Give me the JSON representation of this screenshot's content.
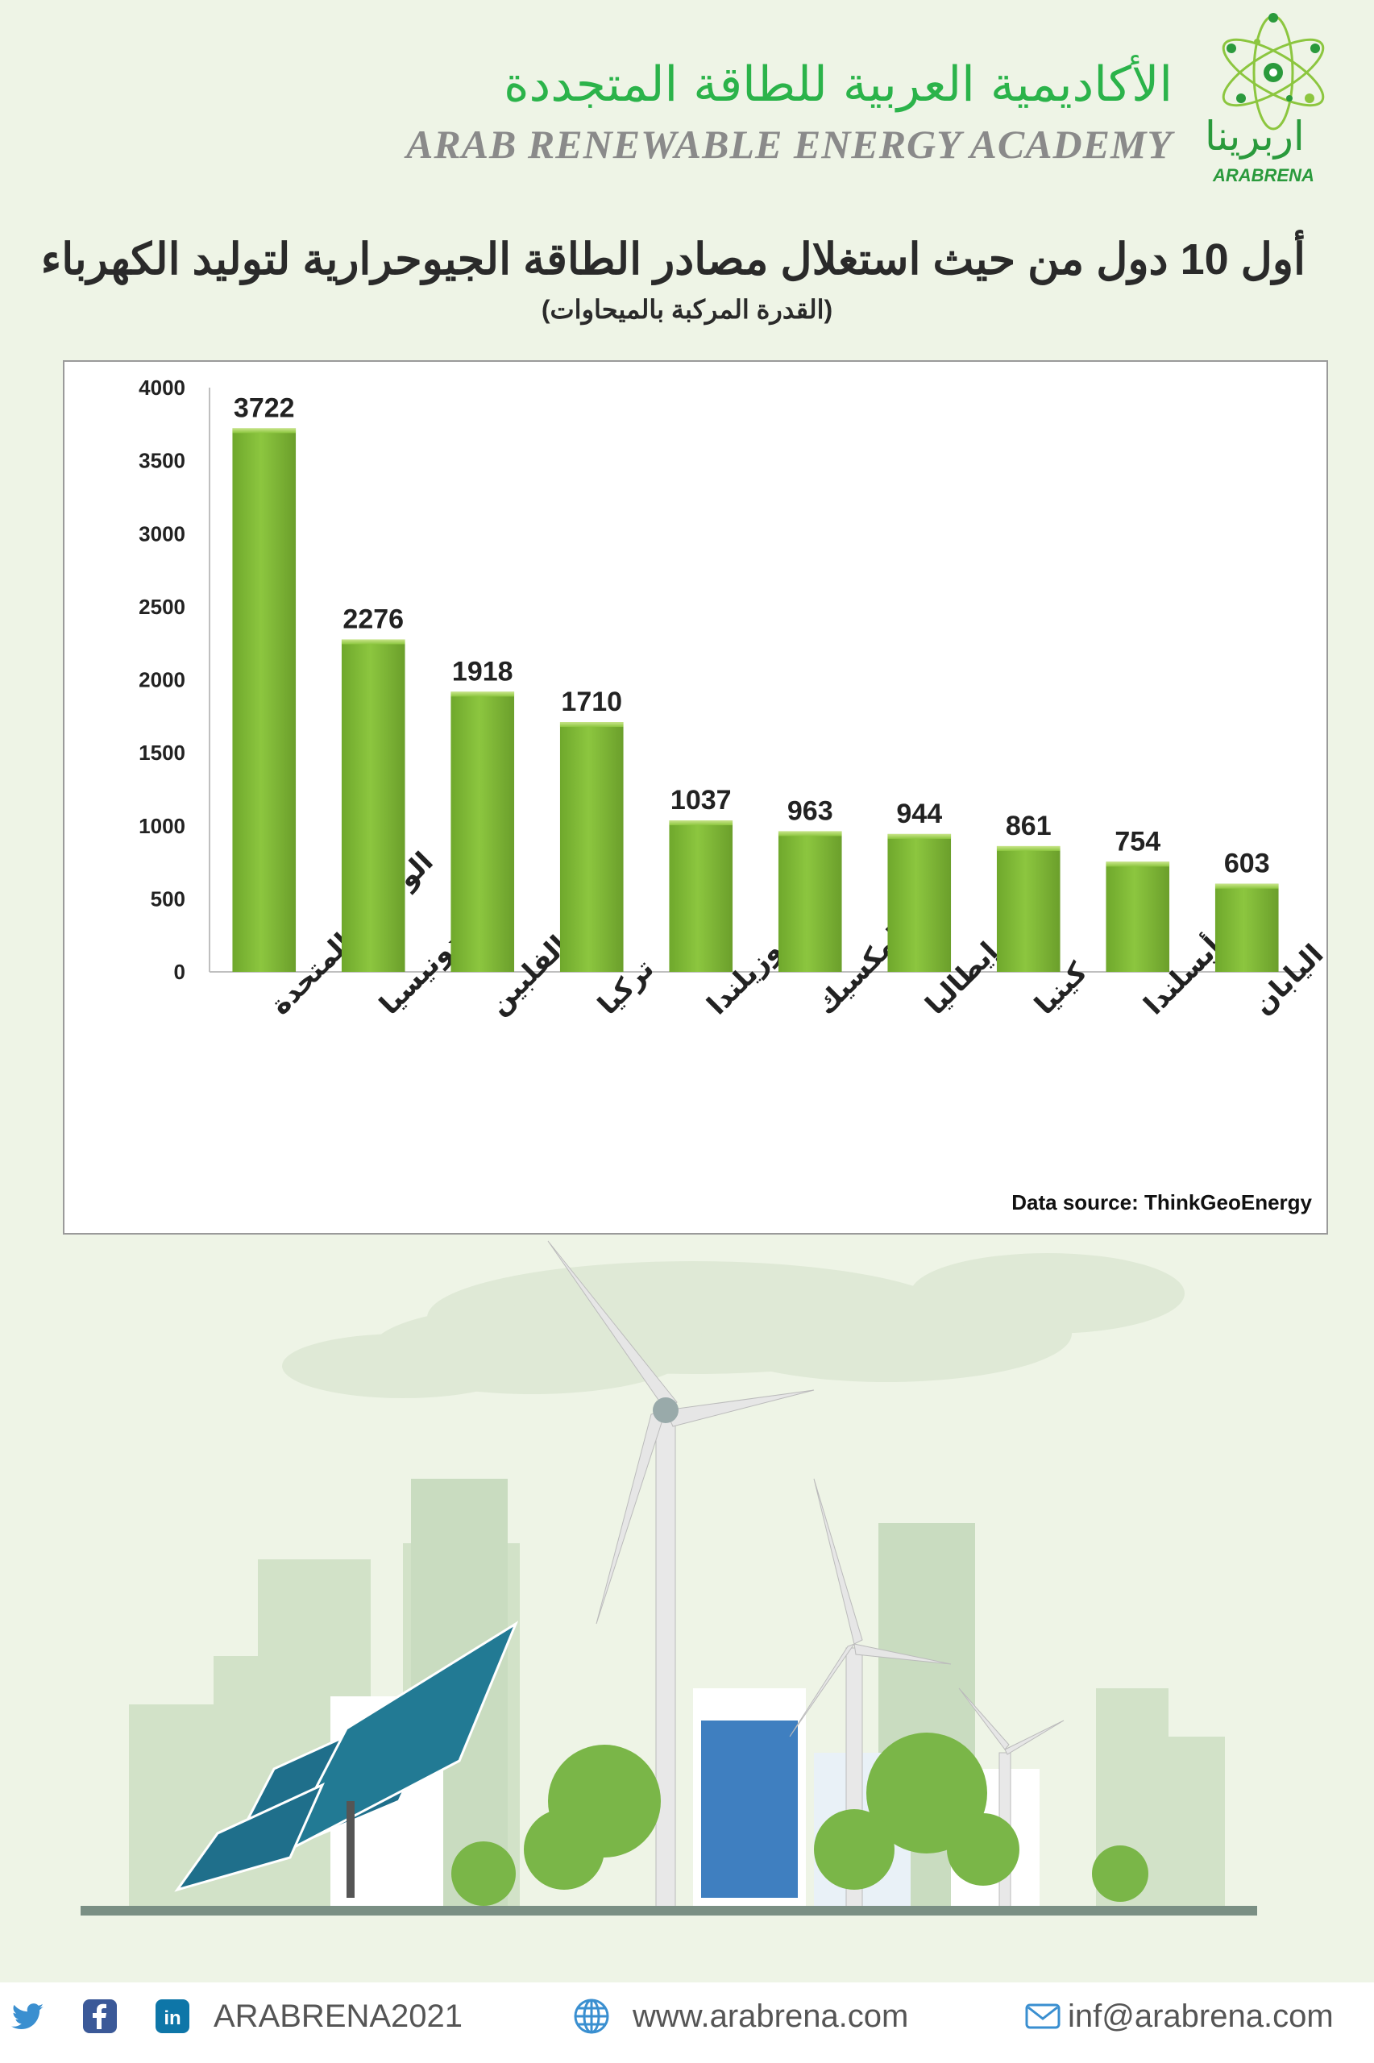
{
  "header": {
    "brand_ar": "الأكاديمية العربية للطاقة المتجددة",
    "brand_en": "ARAB RENEWABLE ENERGY ACADEMY",
    "logo_ar": "اربرينا",
    "logo_en": "ARABRENA"
  },
  "chart": {
    "title_ar": "أول 10 دول من حيث استغلال مصادر الطاقة الجيوحرارية لتوليد الكهرباء",
    "subtitle_ar": "(القدرة المركبة بالميحاوات)",
    "source": "Data source: ThinkGeoEnergy"
  },
  "chart_data": {
    "type": "bar",
    "categories": [
      "الولايات المتحدة",
      "إندونيسيا",
      "الفلبين",
      "تركيا",
      "نيوزيلندا",
      "المكسيك",
      "إيطاليا",
      "كينيا",
      "أيسلندا",
      "اليابان"
    ],
    "values": [
      3722,
      2276,
      1918,
      1710,
      1037,
      963,
      944,
      861,
      754,
      603
    ],
    "ylim": [
      0,
      4000
    ],
    "yticks": [
      0,
      500,
      1000,
      1500,
      2000,
      2500,
      3000,
      3500,
      4000
    ],
    "bar_color": "#8cc63f",
    "grid": false,
    "legend": false
  },
  "footer": {
    "social": "ARABRENA2021",
    "website": "www.arabrena.com",
    "email": "inf@arabrena.com"
  },
  "colors": {
    "brand_green": "#2bb34a",
    "background": "#eef4e6",
    "footer_icon": "#3a8fd0"
  },
  "icons": [
    "twitter-icon",
    "facebook-icon",
    "linkedin-icon",
    "globe-icon",
    "mail-icon"
  ]
}
